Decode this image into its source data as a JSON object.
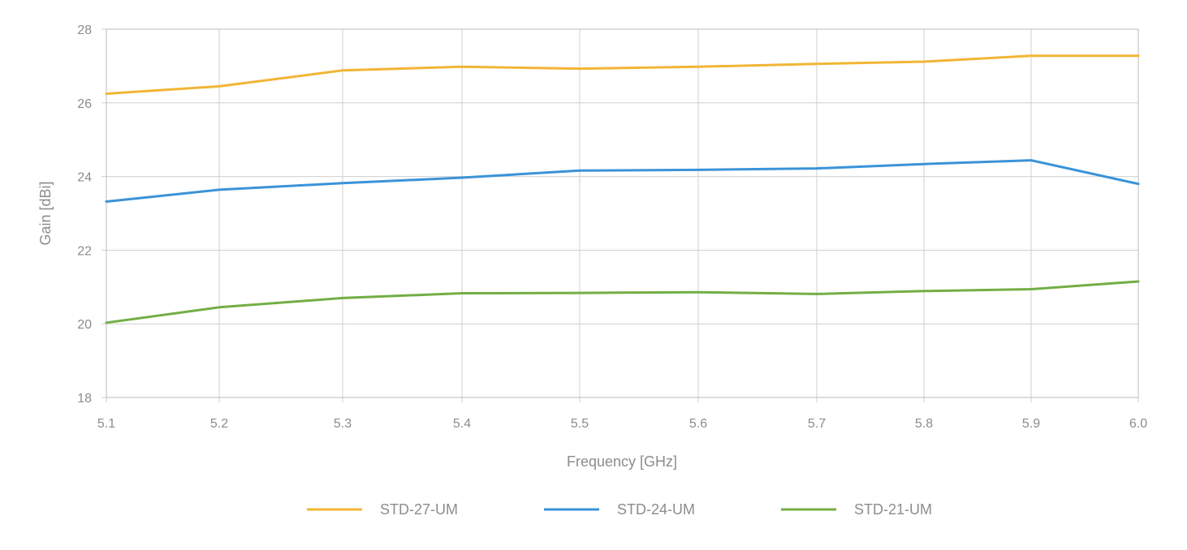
{
  "chart_data": {
    "type": "line",
    "title": "",
    "xlabel": "Frequency [GHz]",
    "ylabel": "Gain [dBi]",
    "xlim": [
      5.1,
      6.0
    ],
    "ylim": [
      18,
      28
    ],
    "x_ticks": [
      "5.1",
      "5.2",
      "5.3",
      "5.4",
      "5.5",
      "5.6",
      "5.7",
      "5.8",
      "5.9",
      "6.0"
    ],
    "y_ticks": [
      "18",
      "20",
      "22",
      "24",
      "26",
      "28"
    ],
    "grid": true,
    "legend_position": "bottom",
    "series": [
      {
        "name": "STD-27-UM",
        "color": "#F2B535",
        "x": [
          5.1,
          5.2,
          5.3,
          5.4,
          5.5,
          5.6,
          5.7,
          5.8,
          5.9,
          6.0
        ],
        "y": [
          26.25,
          26.45,
          26.88,
          26.98,
          26.93,
          26.98,
          27.06,
          27.12,
          27.28,
          27.28
        ]
      },
      {
        "name": "STD-24-UM",
        "color": "#3A93D8",
        "x": [
          5.1,
          5.2,
          5.3,
          5.4,
          5.5,
          5.6,
          5.7,
          5.8,
          5.9,
          6.0
        ],
        "y": [
          23.32,
          23.64,
          23.82,
          23.97,
          24.16,
          24.18,
          24.22,
          24.34,
          24.44,
          23.8
        ]
      },
      {
        "name": "STD-21-UM",
        "color": "#72AE45",
        "x": [
          5.1,
          5.2,
          5.3,
          5.4,
          5.5,
          5.6,
          5.7,
          5.8,
          5.9,
          6.0
        ],
        "y": [
          20.03,
          20.45,
          20.7,
          20.83,
          20.84,
          20.86,
          20.81,
          20.89,
          20.94,
          21.15
        ]
      }
    ]
  }
}
